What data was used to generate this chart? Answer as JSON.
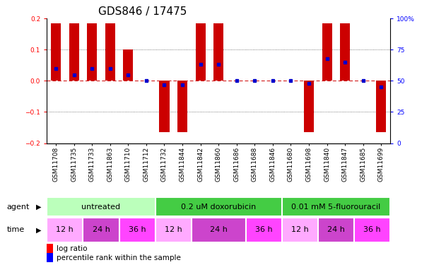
{
  "title": "GDS846 / 17475",
  "samples": [
    "GSM11708",
    "GSM11735",
    "GSM11733",
    "GSM11863",
    "GSM11710",
    "GSM11712",
    "GSM11732",
    "GSM11844",
    "GSM11842",
    "GSM11860",
    "GSM11686",
    "GSM11688",
    "GSM11846",
    "GSM11680",
    "GSM11698",
    "GSM11840",
    "GSM11847",
    "GSM11685",
    "GSM11699"
  ],
  "log_ratio": [
    0.185,
    0.185,
    0.185,
    0.185,
    0.1,
    0.0,
    -0.165,
    -0.165,
    0.185,
    0.185,
    0.0,
    0.0,
    0.0,
    0.0,
    -0.165,
    0.185,
    0.185,
    0.0,
    -0.165
  ],
  "percentile_rank": [
    60,
    55,
    60,
    60,
    55,
    50,
    47,
    47,
    63,
    63,
    50,
    50,
    50,
    50,
    48,
    68,
    65,
    50,
    45
  ],
  "ylim": [
    -0.2,
    0.2
  ],
  "y2lim": [
    0,
    100
  ],
  "yticks": [
    -0.2,
    -0.1,
    0.0,
    0.1,
    0.2
  ],
  "y2ticks": [
    0,
    25,
    50,
    75,
    100
  ],
  "bar_color": "#cc0000",
  "dot_color": "#0000cc",
  "zero_line_color": "#cc0000",
  "grid_color": "#555555",
  "bg_color": "#ffffff",
  "agent_groups": [
    {
      "label": "untreated",
      "start": 0,
      "end": 6,
      "color": "#bbffbb"
    },
    {
      "label": "0.2 uM doxorubicin",
      "start": 6,
      "end": 13,
      "color": "#44cc44"
    },
    {
      "label": "0.01 mM 5-fluorouracil",
      "start": 13,
      "end": 19,
      "color": "#44cc44"
    }
  ],
  "time_groups": [
    {
      "label": "12 h",
      "start": 0,
      "end": 2,
      "color": "#ffaaff"
    },
    {
      "label": "24 h",
      "start": 2,
      "end": 4,
      "color": "#cc44cc"
    },
    {
      "label": "36 h",
      "start": 4,
      "end": 6,
      "color": "#ff44ff"
    },
    {
      "label": "12 h",
      "start": 6,
      "end": 8,
      "color": "#ffaaff"
    },
    {
      "label": "24 h",
      "start": 8,
      "end": 11,
      "color": "#cc44cc"
    },
    {
      "label": "36 h",
      "start": 11,
      "end": 13,
      "color": "#ff44ff"
    },
    {
      "label": "12 h",
      "start": 13,
      "end": 15,
      "color": "#ffaaff"
    },
    {
      "label": "24 h",
      "start": 15,
      "end": 17,
      "color": "#cc44cc"
    },
    {
      "label": "36 h",
      "start": 17,
      "end": 19,
      "color": "#ff44ff"
    }
  ],
  "title_fontsize": 11,
  "tick_fontsize": 6.5,
  "label_fontsize": 8,
  "bar_width": 0.55
}
